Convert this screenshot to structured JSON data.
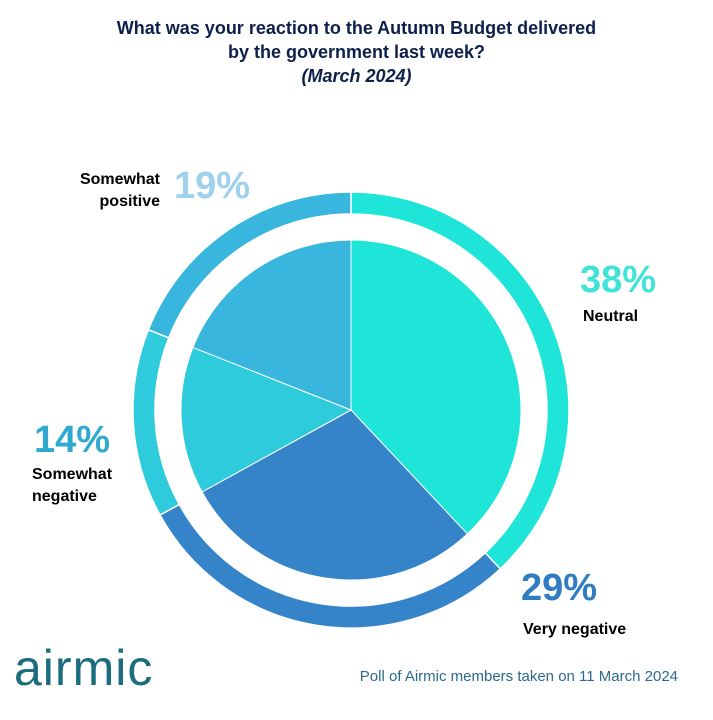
{
  "chart_data": {
    "type": "pie",
    "title": "What was your reaction to the Autumn Budget delivered by the government last week?",
    "subtitle": "(March 2024)",
    "categories": [
      "Neutral",
      "Very negative",
      "Somewhat negative",
      "Somewhat positive"
    ],
    "values": [
      38,
      29,
      14,
      19
    ],
    "value_labels": [
      "38%",
      "29%",
      "14%",
      "19%"
    ],
    "colors": [
      "#1fe5d9",
      "#3583c8",
      "#2ecbdc",
      "#38b6dd"
    ],
    "label_colors": [
      "#3fe3d8",
      "#2f7cc0",
      "#2fa9cf",
      "#9fd0ee"
    ],
    "logo": "airmic",
    "source": "Poll of Airmic members taken on 11 March 2024"
  }
}
